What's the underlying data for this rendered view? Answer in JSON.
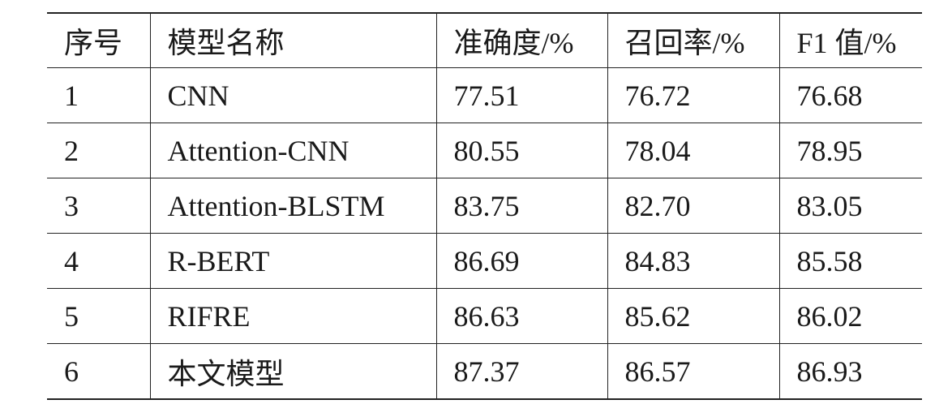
{
  "table": {
    "headers": [
      "序号",
      "模型名称",
      "准确度/%",
      "召回率/%",
      "F1 值/%"
    ],
    "rows": [
      [
        "1",
        "CNN",
        "77.51",
        "76.72",
        "76.68"
      ],
      [
        "2",
        "Attention-CNN",
        "80.55",
        "78.04",
        "78.95"
      ],
      [
        "3",
        "Attention-BLSTM",
        "83.75",
        "82.70",
        "83.05"
      ],
      [
        "4",
        "R-BERT",
        "86.69",
        "84.83",
        "85.58"
      ],
      [
        "5",
        "RIFRE",
        "86.63",
        "85.62",
        "86.02"
      ],
      [
        "6",
        "本文模型",
        "87.37",
        "86.57",
        "86.93"
      ]
    ]
  }
}
